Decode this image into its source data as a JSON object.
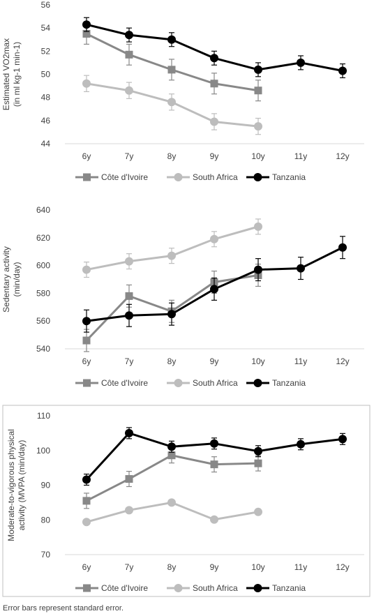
{
  "chart_data": [
    {
      "type": "line",
      "ylabel": [
        "Estimated VO2max",
        "(in ml kg-1 min-1)"
      ],
      "categories": [
        "6y",
        "7y",
        "8y",
        "9y",
        "10y",
        "11y",
        "12y"
      ],
      "ylim": [
        44,
        56
      ],
      "yticks": [
        44,
        46,
        48,
        50,
        52,
        54,
        56
      ],
      "grid": false,
      "legend": "bottom",
      "series": [
        {
          "name": "Côte d'Ivoire",
          "color": "#888888",
          "marker": "square",
          "values": [
            53.5,
            51.7,
            50.4,
            49.2,
            48.6,
            null,
            null
          ],
          "error": [
            0.9,
            0.9,
            0.9,
            0.9,
            0.9,
            null,
            null
          ]
        },
        {
          "name": "South Africa",
          "color": "#bdbdbd",
          "marker": "circle",
          "values": [
            49.2,
            48.6,
            47.6,
            45.9,
            45.5,
            null,
            null
          ],
          "error": [
            0.7,
            0.7,
            0.7,
            0.7,
            0.7,
            null,
            null
          ]
        },
        {
          "name": "Tanzania",
          "color": "#000000",
          "marker": "circle",
          "values": [
            54.3,
            53.4,
            53.0,
            51.4,
            50.4,
            51.0,
            50.3
          ],
          "error": [
            0.6,
            0.6,
            0.6,
            0.6,
            0.6,
            0.6,
            0.6
          ]
        }
      ]
    },
    {
      "type": "line",
      "ylabel": [
        "Sedentary activity",
        "(min/day)"
      ],
      "categories": [
        "6y",
        "7y",
        "8y",
        "9y",
        "10y",
        "11y",
        "12y"
      ],
      "ylim": [
        540,
        640
      ],
      "yticks": [
        540,
        560,
        580,
        600,
        620,
        640
      ],
      "grid": false,
      "legend": "bottom",
      "series": [
        {
          "name": "Côte d'Ivoire",
          "color": "#888888",
          "marker": "square",
          "values": [
            546,
            578,
            567,
            588,
            593,
            null,
            null
          ],
          "error": [
            8,
            8,
            8,
            8,
            8,
            null,
            null
          ]
        },
        {
          "name": "South Africa",
          "color": "#bdbdbd",
          "marker": "circle",
          "values": [
            597,
            603,
            607,
            619,
            628,
            null,
            null
          ],
          "error": [
            5.5,
            5.5,
            5.5,
            5.5,
            5.5,
            null,
            null
          ]
        },
        {
          "name": "Tanzania",
          "color": "#000000",
          "marker": "circle",
          "values": [
            560,
            564,
            565,
            583,
            597,
            598,
            613
          ],
          "error": [
            8,
            8,
            8,
            8,
            8,
            8,
            8
          ]
        }
      ]
    },
    {
      "type": "line",
      "ylabel": [
        "Moderate-to-vigorous physical",
        "activity (MVPA (min/day)"
      ],
      "categories": [
        "6y",
        "7y",
        "8y",
        "9y",
        "10y",
        "11y",
        "12y"
      ],
      "ylim": [
        70,
        110
      ],
      "yticks": [
        70,
        80,
        90,
        100,
        110
      ],
      "grid": false,
      "legend": "bottom",
      "series": [
        {
          "name": "Côte d'Ivoire",
          "color": "#888888",
          "marker": "square",
          "values": [
            85.5,
            91.8,
            98.6,
            96.0,
            96.3,
            null,
            null
          ],
          "error": [
            2.2,
            2.2,
            2.2,
            2.2,
            2.2,
            null,
            null
          ]
        },
        {
          "name": "South Africa",
          "color": "#bdbdbd",
          "marker": "circle",
          "values": [
            79.4,
            82.8,
            85.0,
            80.1,
            82.3,
            null,
            null
          ],
          "error": [
            0.6,
            0.6,
            0.6,
            0.6,
            0.6,
            null,
            null
          ]
        },
        {
          "name": "Tanzania",
          "color": "#000000",
          "marker": "circle",
          "values": [
            91.6,
            105.0,
            101.1,
            102.0,
            99.8,
            101.8,
            103.3
          ],
          "error": [
            1.6,
            1.6,
            1.6,
            1.6,
            1.6,
            1.6,
            1.6
          ]
        }
      ]
    }
  ],
  "footnote": "Error bars represent standard error."
}
